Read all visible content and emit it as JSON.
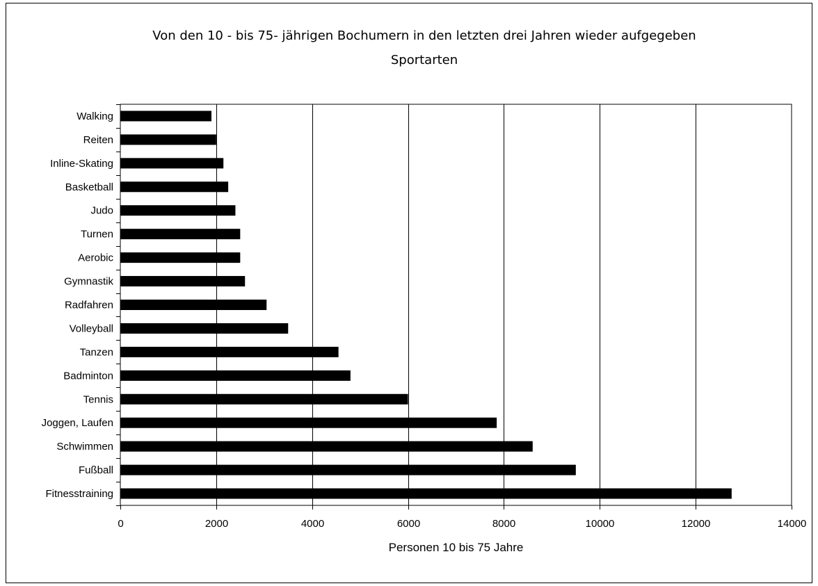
{
  "chart_data": {
    "type": "bar",
    "orientation": "horizontal",
    "title_lines": [
      "Von den 10 - bis 75- jährigen Bochumern in den letzten drei Jahren wieder aufgegeben",
      "Sportarten"
    ],
    "xlabel": "Personen 10 bis 75 Jahre",
    "ylabel": "",
    "xlim": [
      0,
      14000
    ],
    "xticks": [
      "0",
      "2000",
      "4000",
      "6000",
      "8000",
      "10000",
      "12000",
      "14000"
    ],
    "grid": "vertical",
    "legend": "none",
    "bar_color": "#000000",
    "categories": [
      "Walking",
      "Reiten",
      "Inline-Skating",
      "Basketball",
      "Judo",
      "Turnen",
      "Aerobic",
      "Gymnastik",
      "Radfahren",
      "Volleyball",
      "Tanzen",
      "Badminton",
      "Tennis",
      "Joggen, Laufen",
      "Schwimmen",
      "Fußball",
      "Fitnesstraining"
    ],
    "values": [
      1900,
      2000,
      2150,
      2250,
      2400,
      2500,
      2500,
      2600,
      3050,
      3500,
      4550,
      4800,
      6000,
      7850,
      8600,
      9500,
      12750
    ]
  }
}
